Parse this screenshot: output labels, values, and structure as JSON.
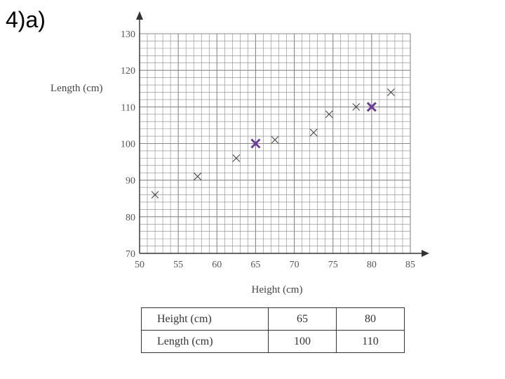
{
  "question": "4)a)",
  "colors": {
    "points": "#444444",
    "highlight": "#6a3d9a",
    "grid": "#888888"
  },
  "chart_data": {
    "type": "scatter",
    "title": "",
    "xlabel": "Height (cm)",
    "ylabel": "Length (cm)",
    "xlim": [
      50,
      85
    ],
    "ylim": [
      70,
      130
    ],
    "xticks": [
      50,
      55,
      60,
      65,
      70,
      75,
      80,
      85
    ],
    "yticks": [
      70,
      80,
      90,
      100,
      110,
      120,
      130
    ],
    "grid": true,
    "points": [
      {
        "x": 52,
        "y": 86
      },
      {
        "x": 57.5,
        "y": 91
      },
      {
        "x": 62.5,
        "y": 96
      },
      {
        "x": 67.5,
        "y": 101
      },
      {
        "x": 72.5,
        "y": 103
      },
      {
        "x": 74.5,
        "y": 108
      },
      {
        "x": 78,
        "y": 110
      },
      {
        "x": 82.5,
        "y": 114
      }
    ],
    "highlighted_points": [
      {
        "x": 65,
        "y": 100
      },
      {
        "x": 80,
        "y": 110
      }
    ]
  },
  "table": {
    "rows": [
      {
        "label": "Height (cm)",
        "values": [
          "65",
          "80"
        ]
      },
      {
        "label": "Length (cm)",
        "values": [
          "100",
          "110"
        ]
      }
    ]
  }
}
